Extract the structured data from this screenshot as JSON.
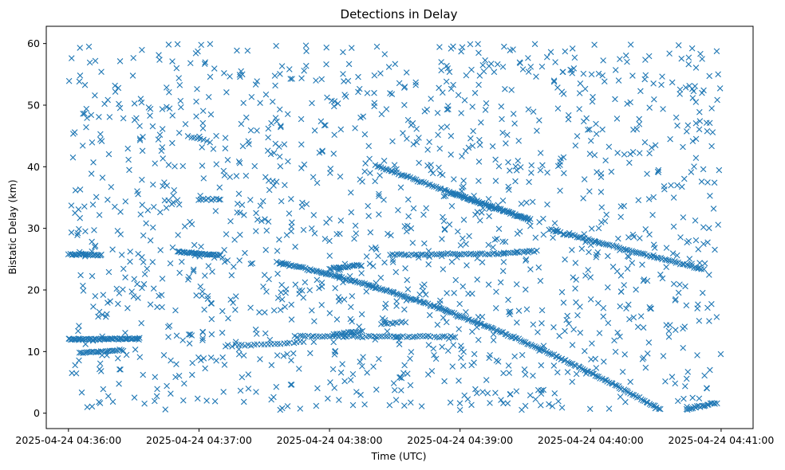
{
  "chart_data": {
    "type": "scatter",
    "title": "Detections in Delay",
    "xlabel": "Time (UTC)",
    "ylabel": "Bistatic Delay (km)",
    "marker": "x",
    "color": "#1f77b4",
    "x_unit": "seconds since 2025-04-24 04:36:00",
    "xlim": [
      -10.2,
      314.7
    ],
    "ylim": [
      -2.5,
      62.8
    ],
    "x_ticks": [
      {
        "value": 0,
        "label": "2025-04-24 04:36:00"
      },
      {
        "value": 60,
        "label": "2025-04-24 04:37:00"
      },
      {
        "value": 120,
        "label": "2025-04-24 04:38:00"
      },
      {
        "value": 180,
        "label": "2025-04-24 04:39:00"
      },
      {
        "value": 240,
        "label": "2025-04-24 04:40:00"
      },
      {
        "value": 300,
        "label": "2025-04-24 04:41:00"
      }
    ],
    "y_ticks": [
      0,
      10,
      20,
      30,
      40,
      50,
      60
    ],
    "tracks": [
      {
        "name": "track-12km-a",
        "x_start": 0,
        "x_end": 33,
        "y_start": 12.0,
        "y_end": 12.1,
        "count": 60
      },
      {
        "name": "track-12km-b",
        "x_start": 104,
        "x_end": 178,
        "y_start": 12.5,
        "y_end": 12.4,
        "count": 60
      },
      {
        "name": "track-descending-25to0",
        "x_start": 96,
        "x_end": 272,
        "y_start": 24.5,
        "y_end": 0.6,
        "count": 220
      },
      {
        "name": "track-descending-40to31",
        "x_start": 141,
        "x_end": 212,
        "y_start": 40.2,
        "y_end": 31.3,
        "count": 80
      },
      {
        "name": "track-descending-35to32",
        "x_start": 175,
        "x_end": 212,
        "y_start": 35.8,
        "y_end": 31.5,
        "count": 40
      },
      {
        "name": "track-descending-30to23",
        "x_start": 221,
        "x_end": 292,
        "y_start": 29.8,
        "y_end": 23.3,
        "count": 80
      },
      {
        "name": "track-26km-a",
        "x_start": 0,
        "x_end": 15,
        "y_start": 25.8,
        "y_end": 25.7,
        "count": 25
      },
      {
        "name": "track-26km-b",
        "x_start": 50,
        "x_end": 70,
        "y_start": 26.2,
        "y_end": 25.6,
        "count": 35
      },
      {
        "name": "track-26km-c",
        "x_start": 148,
        "x_end": 200,
        "y_start": 25.7,
        "y_end": 25.9,
        "count": 50
      },
      {
        "name": "track-26km-d",
        "x_start": 200,
        "x_end": 215,
        "y_start": 26.0,
        "y_end": 26.3,
        "count": 15
      },
      {
        "name": "track-tail-0to2",
        "x_start": 284,
        "x_end": 298,
        "y_start": 0.6,
        "y_end": 1.7,
        "count": 20
      },
      {
        "name": "track-10km",
        "x_start": 5,
        "x_end": 25,
        "y_start": 9.8,
        "y_end": 10.2,
        "count": 25
      },
      {
        "name": "track-11km",
        "x_start": 72,
        "x_end": 108,
        "y_start": 10.9,
        "y_end": 11.5,
        "count": 25
      },
      {
        "name": "track-24km",
        "x_start": 120,
        "x_end": 135,
        "y_start": 23.5,
        "y_end": 24.0,
        "count": 20
      },
      {
        "name": "track-13km",
        "x_start": 122,
        "x_end": 135,
        "y_start": 12.8,
        "y_end": 13.3,
        "count": 15
      },
      {
        "name": "track-14km",
        "x_start": 144,
        "x_end": 155,
        "y_start": 14.5,
        "y_end": 14.8,
        "count": 10
      },
      {
        "name": "track-35km",
        "x_start": 60,
        "x_end": 70,
        "y_start": 34.7,
        "y_end": 34.7,
        "count": 10
      },
      {
        "name": "track-45km",
        "x_start": 55,
        "x_end": 65,
        "y_start": 45.0,
        "y_end": 44.0,
        "count": 8
      }
    ],
    "scatter_clutter": {
      "count": 1400,
      "seed": 20250424,
      "x_range": [
        0,
        300
      ],
      "y_range": [
        0.5,
        60
      ],
      "note": "uniformly scattered single detections across the whole window"
    }
  }
}
